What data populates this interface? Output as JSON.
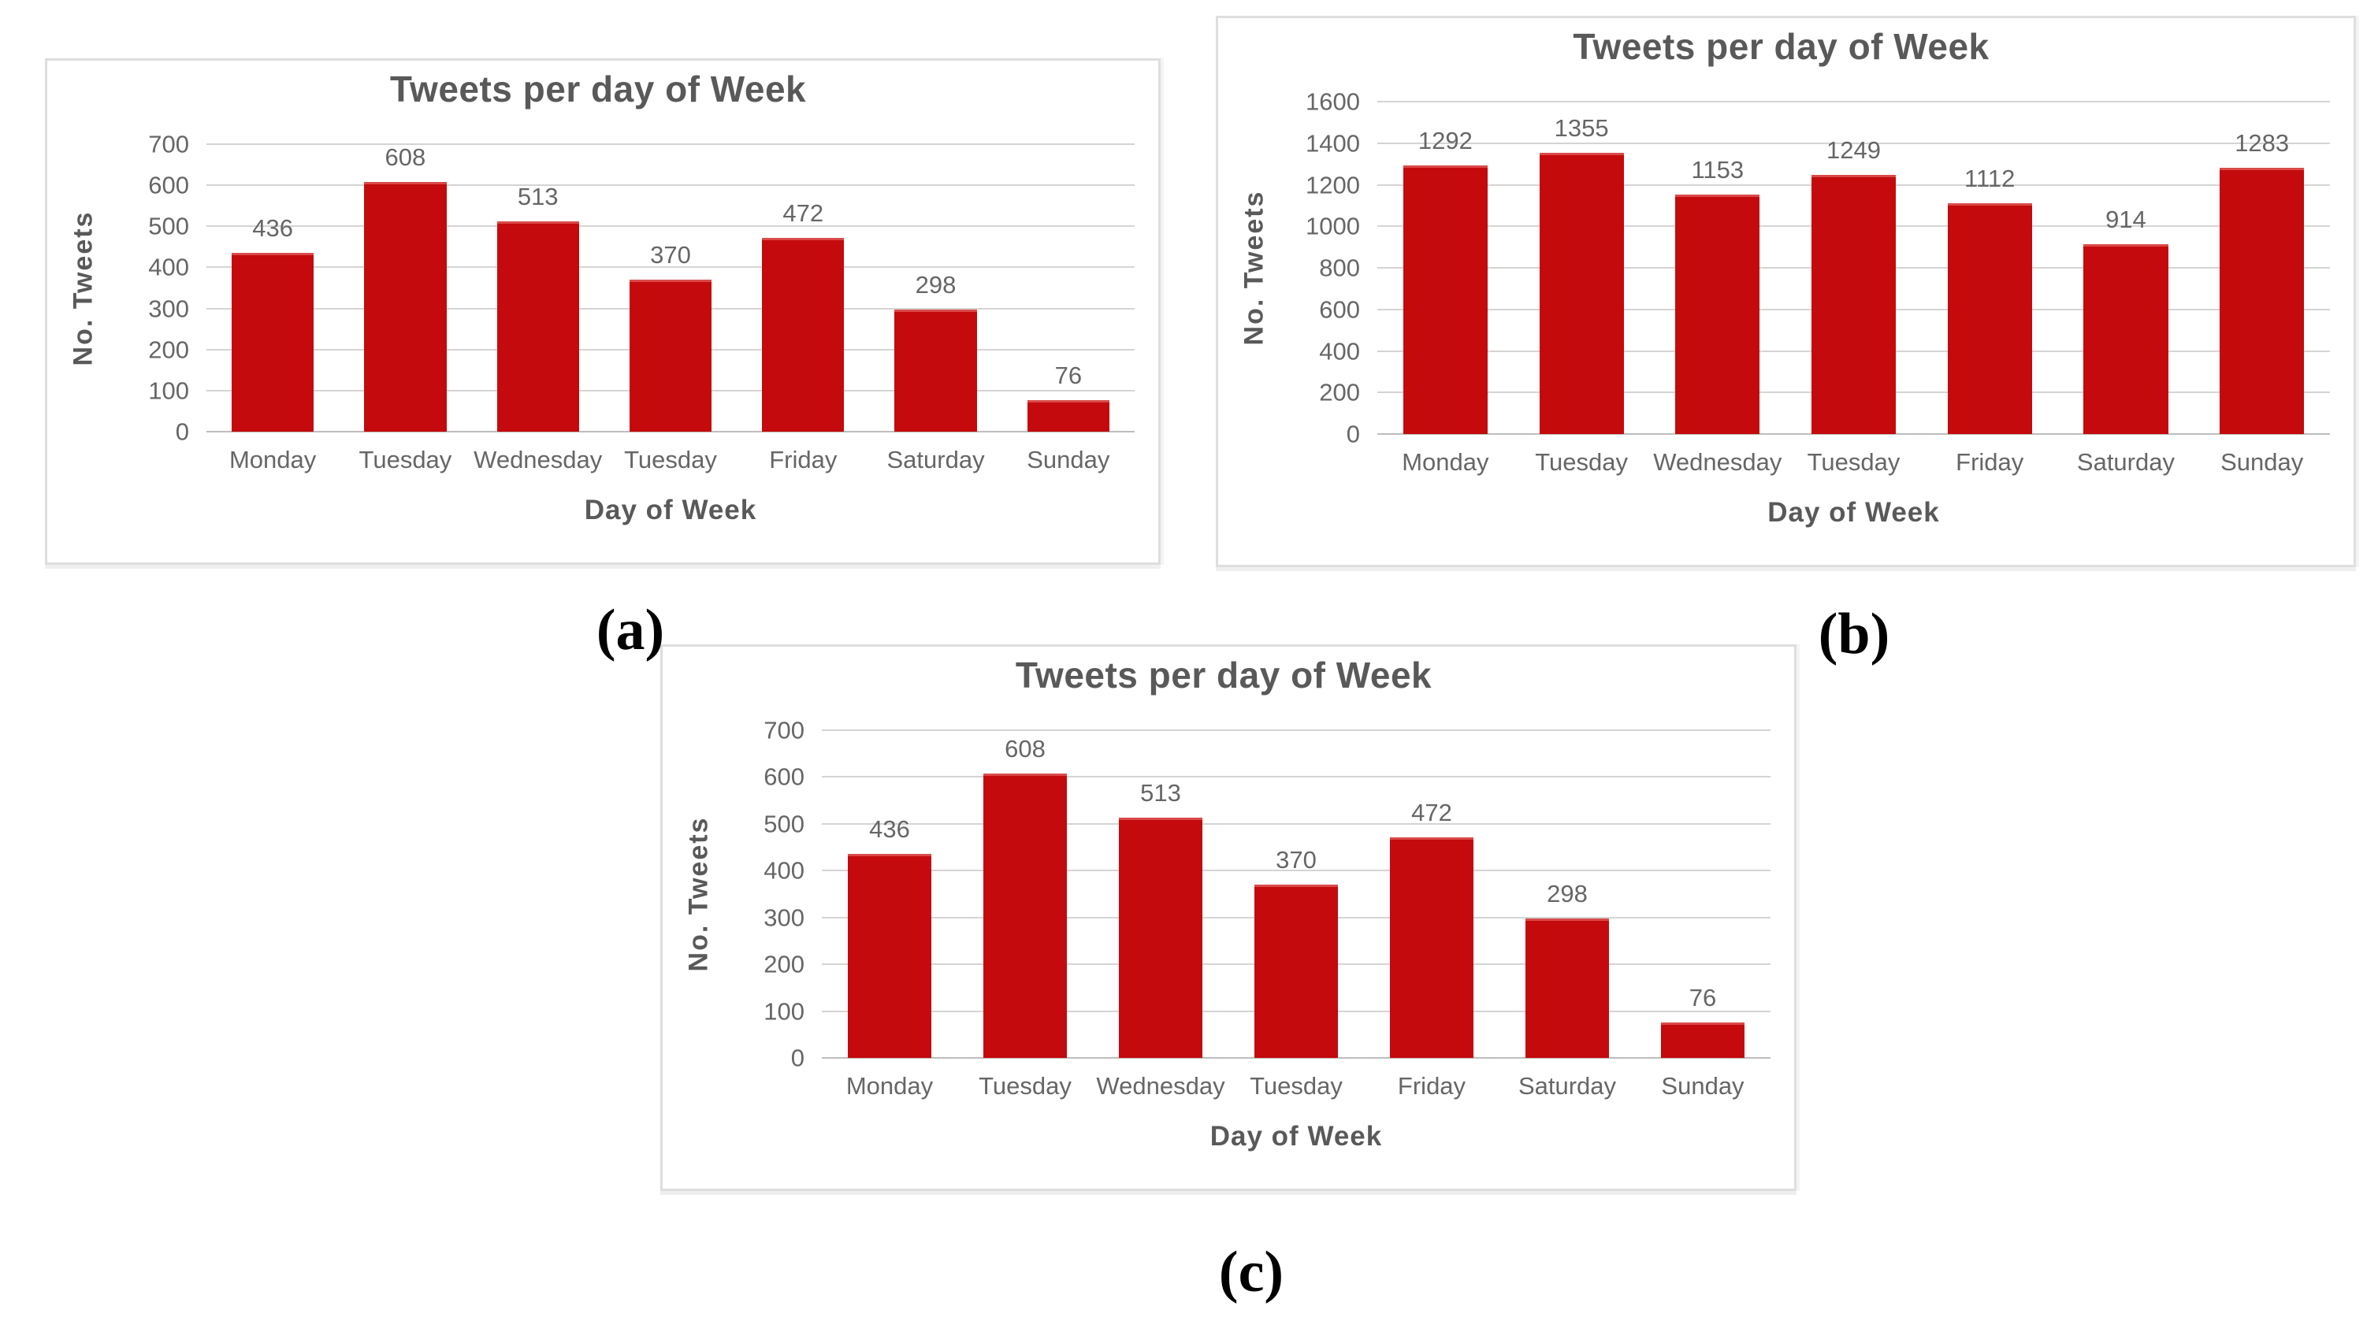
{
  "figure": {
    "captions": {
      "a": "(a)",
      "b": "(b)",
      "c": "(c)"
    }
  },
  "colors": {
    "bar": "#c40a0c",
    "grid": "#d4d4d4",
    "axis_baseline": "#bdbdbd",
    "heading_text": "#595959",
    "tick_text": "#666666",
    "panel_border": "#dedede",
    "background": "#ffffff"
  },
  "chart_data": [
    {
      "id": "a",
      "type": "bar",
      "title": "Tweets per day of Week",
      "xlabel": "Day of Week",
      "ylabel": "No. Tweets",
      "categories": [
        "Monday",
        "Tuesday",
        "Wednesday",
        "Tuesday",
        "Friday",
        "Saturday",
        "Sunday"
      ],
      "values": [
        436,
        608,
        513,
        370,
        472,
        298,
        76
      ],
      "ylim": [
        0,
        700
      ],
      "yticks": [
        0,
        100,
        200,
        300,
        400,
        500,
        600,
        700
      ],
      "grid": true,
      "legend": "none",
      "value_labels_shown": true
    },
    {
      "id": "b",
      "type": "bar",
      "title": "Tweets per day of Week",
      "xlabel": "Day of Week",
      "ylabel": "No. Tweets",
      "categories": [
        "Monday",
        "Tuesday",
        "Wednesday",
        "Tuesday",
        "Friday",
        "Saturday",
        "Sunday"
      ],
      "values": [
        1292,
        1355,
        1153,
        1249,
        1112,
        914,
        1283
      ],
      "ylim": [
        0,
        1600
      ],
      "yticks": [
        0,
        200,
        400,
        600,
        800,
        1000,
        1200,
        1400,
        1600
      ],
      "grid": true,
      "legend": "none",
      "value_labels_shown": true
    },
    {
      "id": "c",
      "type": "bar",
      "title": "Tweets per day of Week",
      "xlabel": "Day of Week",
      "ylabel": "No. Tweets",
      "categories": [
        "Monday",
        "Tuesday",
        "Wednesday",
        "Tuesday",
        "Friday",
        "Saturday",
        "Sunday"
      ],
      "values": [
        436,
        608,
        513,
        370,
        472,
        298,
        76
      ],
      "ylim": [
        0,
        700
      ],
      "yticks": [
        0,
        100,
        200,
        300,
        400,
        500,
        600,
        700
      ],
      "grid": true,
      "legend": "none",
      "value_labels_shown": true
    }
  ]
}
